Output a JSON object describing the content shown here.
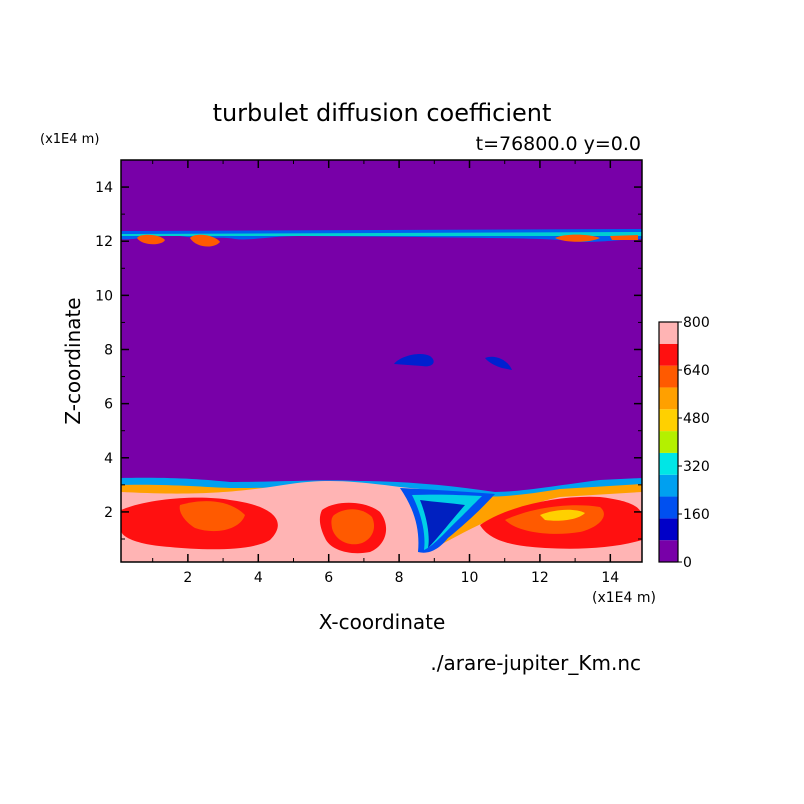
{
  "chart_data": {
    "type": "heatmap",
    "title": "turbulet diffusion coefficient",
    "subtitle": "t=76800.0 y=0.0",
    "xlabel": "X-coordinate",
    "ylabel": "Z-coordinate",
    "x_unit": "(x1E4 m)",
    "y_unit": "(x1E4 m)",
    "xlim": [
      0.1,
      14.9
    ],
    "ylim": [
      0.15,
      15.0
    ],
    "x_ticks": [
      "2",
      "4",
      "6",
      "8",
      "10",
      "12",
      "14"
    ],
    "y_ticks": [
      "2",
      "4",
      "6",
      "8",
      "10",
      "12",
      "14"
    ],
    "source_label": "./arare-jupiter_Km.nc",
    "colorbar": {
      "levels": [
        0,
        80,
        160,
        240,
        320,
        400,
        480,
        560,
        640,
        720,
        800
      ],
      "tick_labels": [
        "0",
        "160",
        "320",
        "480",
        "640",
        "800"
      ],
      "colors": [
        "#7800a8",
        "#0000c8",
        "#0050f0",
        "#00a0f0",
        "#00e6e6",
        "#b4f000",
        "#ffd000",
        "#ffa000",
        "#ff5a00",
        "#ff1010",
        "#ffb4b4"
      ]
    },
    "grid": false,
    "legend": "colorbar-right"
  }
}
